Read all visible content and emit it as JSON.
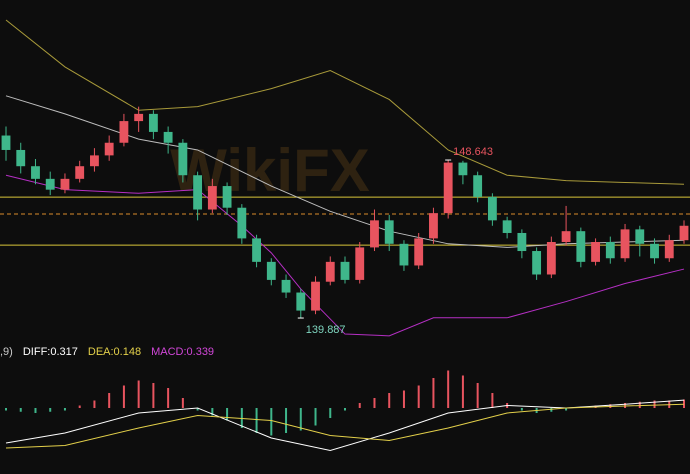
{
  "chart_data": {
    "type": "candlestick",
    "watermark": "WikiFX",
    "ylim": [
      138.67,
      157.51
    ],
    "up_color": "#e8545f",
    "down_color": "#3fb68b",
    "open": [
      150.0,
      149.2,
      148.3,
      147.6,
      147.0,
      147.6,
      148.3,
      148.9,
      149.6,
      150.8,
      151.2,
      150.2,
      149.6,
      147.8,
      145.9,
      147.2,
      146.0,
      144.3,
      143.0,
      142.0,
      141.3,
      140.3,
      141.9,
      143.0,
      142.0,
      143.8,
      145.3,
      144.0,
      142.8,
      144.3,
      145.7,
      148.5,
      147.8,
      146.6,
      145.3,
      144.6,
      143.6,
      142.3,
      144.1,
      144.7,
      143.0,
      144.1,
      143.2,
      144.8,
      144.0,
      143.2,
      144.2
    ],
    "high": [
      150.5,
      149.6,
      148.7,
      148.0,
      147.9,
      148.6,
      149.3,
      150.0,
      151.2,
      151.6,
      151.4,
      150.5,
      149.8,
      148.0,
      147.6,
      147.4,
      146.2,
      144.5,
      143.2,
      142.3,
      141.5,
      142.2,
      143.3,
      143.3,
      144.1,
      145.9,
      145.6,
      144.2,
      144.6,
      146.0,
      148.643,
      148.6,
      148.0,
      146.8,
      145.5,
      144.8,
      143.8,
      144.4,
      146.1,
      144.9,
      144.3,
      144.4,
      145.1,
      145.0,
      144.3,
      144.5,
      145.3
    ],
    "low": [
      148.6,
      147.9,
      147.3,
      146.7,
      146.8,
      147.4,
      148.0,
      148.6,
      149.4,
      150.2,
      149.8,
      149.0,
      147.4,
      145.3,
      145.7,
      145.6,
      144.0,
      142.7,
      141.7,
      141.0,
      139.887,
      140.1,
      141.7,
      141.8,
      141.8,
      143.6,
      143.6,
      142.5,
      142.6,
      144.0,
      145.4,
      147.3,
      146.3,
      145.0,
      144.3,
      143.2,
      142.0,
      142.1,
      143.9,
      142.7,
      142.8,
      142.9,
      143.0,
      143.3,
      142.9,
      143.0,
      144.0
    ],
    "close": [
      149.2,
      148.3,
      147.6,
      147.0,
      147.6,
      148.3,
      148.9,
      149.6,
      150.8,
      151.2,
      150.2,
      149.6,
      147.8,
      145.9,
      147.2,
      146.0,
      144.3,
      143.0,
      142.0,
      141.3,
      140.3,
      141.9,
      143.0,
      142.0,
      143.8,
      145.3,
      144.0,
      142.8,
      144.3,
      145.7,
      148.5,
      147.8,
      146.6,
      145.3,
      144.6,
      143.6,
      142.3,
      144.1,
      144.7,
      143.0,
      144.1,
      143.2,
      144.8,
      144.0,
      143.2,
      144.2,
      145.0
    ],
    "bands": [
      {
        "color": "#a89a3a",
        "x": [
          0,
          4,
          9,
          13,
          18,
          22,
          26,
          30,
          34,
          38,
          42,
          46
        ],
        "values": [
          156.4,
          153.8,
          151.4,
          151.6,
          152.6,
          153.6,
          152.0,
          149.2,
          147.8,
          147.5,
          147.4,
          147.3
        ]
      },
      {
        "color": "#bdbdbd",
        "x": [
          0,
          4,
          9,
          13,
          18,
          22,
          26,
          30,
          34,
          38,
          42,
          46
        ],
        "values": [
          152.2,
          151.2,
          149.8,
          149.2,
          147.2,
          145.8,
          144.7,
          144.0,
          143.8,
          144.0,
          144.1,
          144.2
        ]
      },
      {
        "color": "#b52fc4",
        "x": [
          0,
          4,
          9,
          13,
          16,
          18,
          20,
          23,
          26,
          29,
          34,
          38,
          42,
          46
        ],
        "values": [
          147.8,
          147.0,
          146.8,
          147.0,
          145.0,
          143.5,
          141.5,
          139.0,
          138.9,
          139.9,
          139.9,
          140.8,
          141.8,
          142.6
        ]
      }
    ],
    "levels": [
      {
        "value": 146.59,
        "color": "#d9c53a",
        "dashed": false
      },
      {
        "value": 145.65,
        "color": "#d98a2a",
        "dashed": true
      },
      {
        "value": 143.93,
        "color": "#d9c53a",
        "dashed": false
      }
    ],
    "annotations": [
      {
        "label": 148.643,
        "x": 30,
        "color": "#e8545f"
      },
      {
        "label": 139.887,
        "x": 20,
        "color": "#7fd6c0"
      }
    ],
    "macd": {
      "ylim": [
        -2.48,
        1.92
      ],
      "header": [
        {
          "text": ",9)",
          "color": "#cccccc"
        },
        {
          "text": "DIFF:0.317",
          "color": "#ffffff"
        },
        {
          "text": "DEA:0.148",
          "color": "#e3d04a"
        },
        {
          "text": "MACD:0.339",
          "color": "#d247d9"
        }
      ],
      "histogram": [
        -0.1,
        -0.15,
        -0.2,
        -0.15,
        -0.1,
        0.1,
        0.3,
        0.6,
        0.9,
        1.1,
        1.0,
        0.8,
        0.4,
        -0.1,
        -0.3,
        -0.5,
        -0.8,
        -1.0,
        -1.1,
        -1.0,
        -0.9,
        -0.7,
        -0.4,
        -0.1,
        0.2,
        0.4,
        0.6,
        0.7,
        0.9,
        1.2,
        1.5,
        1.3,
        1.0,
        0.6,
        0.2,
        -0.1,
        -0.2,
        -0.15,
        -0.1,
        0.05,
        0.1,
        0.15,
        0.2,
        0.25,
        0.3,
        0.3,
        0.339
      ],
      "lines": [
        {
          "color": "#ffffff",
          "x": [
            0,
            4,
            9,
            13,
            18,
            22,
            26,
            30,
            34,
            38,
            42,
            46
          ],
          "values": [
            -1.4,
            -1.0,
            -0.2,
            0.0,
            -1.2,
            -1.7,
            -1.0,
            -0.2,
            0.1,
            0.0,
            0.15,
            0.317
          ]
        },
        {
          "color": "#e3d04a",
          "x": [
            0,
            4,
            9,
            13,
            18,
            22,
            26,
            30,
            34,
            38,
            42,
            46
          ],
          "values": [
            -1.6,
            -1.5,
            -0.8,
            -0.3,
            -0.5,
            -1.1,
            -1.3,
            -0.8,
            -0.2,
            0.0,
            0.08,
            0.148
          ]
        }
      ]
    }
  }
}
